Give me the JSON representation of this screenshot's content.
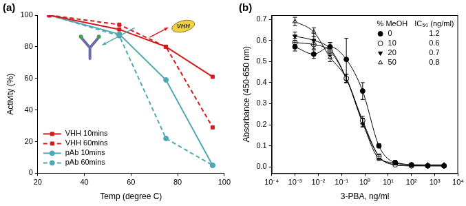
{
  "chart_data": [
    {
      "type": "line",
      "title": "(a)",
      "x_label": "Temp (degree C)",
      "y_label": "Activity (%)",
      "annotations": [
        "VHH"
      ],
      "x": [
        25,
        55,
        75,
        95
      ],
      "xlim": [
        20,
        100
      ],
      "xticks": [
        20,
        40,
        60,
        80,
        100
      ],
      "ylim": [
        0,
        100
      ],
      "yticks": [
        0,
        20,
        40,
        60,
        80,
        100
      ],
      "grid": false,
      "legend": "lower left",
      "series": [
        {
          "name": "VHH 10mins",
          "color": "#d7191c",
          "marker": "square",
          "line_style": "solid",
          "values": [
            100,
            91,
            80,
            61
          ]
        },
        {
          "name": "VHH 60mins",
          "color": "#d7191c",
          "marker": "square",
          "line_style": "dashed",
          "values": [
            100,
            94,
            80,
            29
          ]
        },
        {
          "name": "pAb 10mins",
          "color": "#4ea7b2",
          "marker": "circle",
          "line_style": "solid",
          "values": [
            100,
            88,
            59,
            5
          ]
        },
        {
          "name": "pAb 60mins",
          "color": "#4ea7b2",
          "marker": "circle",
          "line_style": "dashed",
          "values": [
            100,
            87,
            22,
            5
          ]
        }
      ]
    },
    {
      "type": "line",
      "title": "(b)",
      "log": "x",
      "x_label": "3-PBA, ng/ml",
      "y_label": "Absorbance (450-650 nm)",
      "x": [
        0.001,
        0.0064,
        0.032,
        0.16,
        0.8,
        4,
        20,
        100,
        500,
        2500
      ],
      "xlim": [
        0.0001,
        10000
      ],
      "xticks": [
        {
          "value": 0.0001,
          "label": "10⁻⁴"
        },
        {
          "value": 0.001,
          "label": "10⁻³"
        },
        {
          "value": 0.01,
          "label": "10⁻²"
        },
        {
          "value": 0.1,
          "label": "10⁻¹"
        },
        {
          "value": 1,
          "label": "10⁰"
        },
        {
          "value": 10,
          "label": "10¹"
        },
        {
          "value": 100,
          "label": "10²"
        },
        {
          "value": 1000,
          "label": "10³"
        },
        {
          "value": 10000,
          "label": "10⁴"
        }
      ],
      "ylim": [
        -0.03,
        0.72
      ],
      "yticks": [
        {
          "value": 0,
          "label": "0.0"
        },
        0.1,
        0.2,
        0.3,
        0.4,
        0.5,
        0.6,
        0.7
      ],
      "grid": false,
      "legend": "upper right",
      "legend_headers": [
        "% MeOH",
        "IC₅₀ (ng/ml)"
      ],
      "series": [
        {
          "name": "0",
          "ic50": 1.2,
          "color": "#000000",
          "marker": "circle",
          "line_style": "solid",
          "values": [
            0.57,
            0.535,
            0.57,
            0.51,
            0.36,
            0.1,
            0.02,
            0.01,
            0.005,
            0.005
          ],
          "errors": [
            0.02,
            0.02,
            0.02,
            0.1,
            0.04,
            0.01,
            0.01,
            0,
            0,
            0
          ]
        },
        {
          "name": "10",
          "ic50": 0.6,
          "color": "#000000",
          "marker": "open_circle",
          "line_style": "solid",
          "values": [
            0.59,
            0.58,
            0.55,
            0.42,
            0.22,
            0.05,
            0.01,
            0.005,
            0.005,
            0.005
          ],
          "errors": [
            0.02,
            0.02,
            0.02,
            0.02,
            0.02,
            0.01,
            0,
            0,
            0,
            0
          ]
        },
        {
          "name": "20",
          "ic50": 0.7,
          "color": "#000000",
          "marker": "triangle_down",
          "line_style": "solid",
          "values": [
            0.62,
            0.6,
            0.56,
            0.42,
            0.21,
            0.05,
            0.01,
            0.005,
            0.005,
            0.005
          ],
          "errors": [
            0.02,
            0.02,
            0.03,
            0.02,
            0.02,
            0.01,
            0,
            0,
            0,
            0
          ]
        },
        {
          "name": "50",
          "ic50": 0.8,
          "color": "#000000",
          "marker": "open_triangle",
          "line_style": "solid",
          "values": [
            0.69,
            0.64,
            0.52,
            0.42,
            0.21,
            0.04,
            0.02,
            0.01,
            0.01,
            0.01
          ],
          "errors": [
            0.02,
            0.02,
            0.02,
            0.02,
            0.02,
            0.01,
            0.01,
            0,
            0,
            0
          ]
        }
      ]
    }
  ]
}
